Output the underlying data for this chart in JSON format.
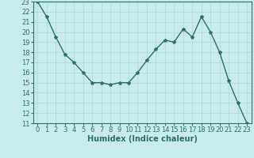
{
  "x": [
    0,
    1,
    2,
    3,
    4,
    5,
    6,
    7,
    8,
    9,
    10,
    11,
    12,
    13,
    14,
    15,
    16,
    17,
    18,
    19,
    20,
    21,
    22,
    23
  ],
  "y": [
    23,
    21.5,
    19.5,
    17.8,
    17.0,
    16.0,
    15.0,
    15.0,
    14.8,
    15.0,
    15.0,
    16.0,
    17.2,
    18.3,
    19.2,
    19.0,
    20.3,
    19.5,
    21.5,
    20.0,
    18.0,
    15.2,
    13.0,
    11.0
  ],
  "line_color": "#2d7070",
  "marker": "*",
  "marker_size": 3,
  "bg_color": "#c8ebeb",
  "grid_color": "#a8d8d8",
  "xlabel": "Humidex (Indice chaleur)",
  "ylim": [
    11,
    23
  ],
  "xlim": [
    -0.5,
    23.5
  ],
  "yticks": [
    11,
    12,
    13,
    14,
    15,
    16,
    17,
    18,
    19,
    20,
    21,
    22,
    23
  ],
  "xticks": [
    0,
    1,
    2,
    3,
    4,
    5,
    6,
    7,
    8,
    9,
    10,
    11,
    12,
    13,
    14,
    15,
    16,
    17,
    18,
    19,
    20,
    21,
    22,
    23
  ],
  "xlabel_fontsize": 7,
  "tick_fontsize": 6,
  "line_width": 1.0
}
